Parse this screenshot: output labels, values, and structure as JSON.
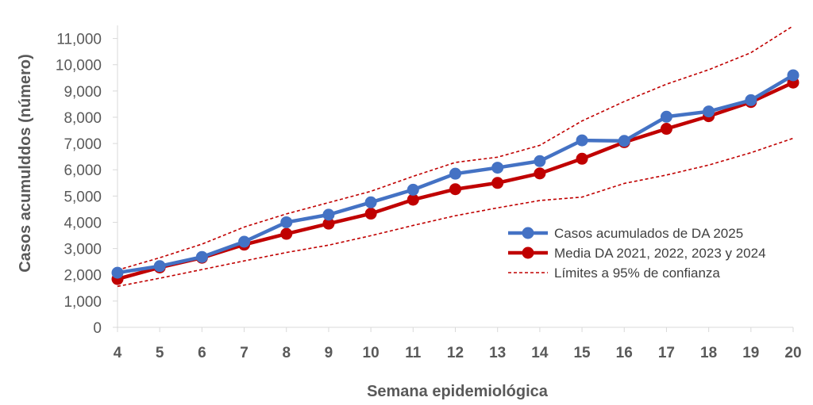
{
  "chart_data": {
    "type": "line",
    "title": "",
    "xlabel": "Semana epidemiológica",
    "ylabel": "Casos acumulddos (número)",
    "x": [
      4,
      5,
      6,
      7,
      8,
      9,
      10,
      11,
      12,
      13,
      14,
      15,
      16,
      17,
      18,
      19,
      20
    ],
    "x_tick_labels": [
      "4",
      "5",
      "6",
      "7",
      "8",
      "9",
      "10",
      "11",
      "12",
      "13",
      "14",
      "15",
      "16",
      "17",
      "18",
      "19",
      "20"
    ],
    "y_tick_labels": [
      "0",
      "1,000",
      "2,000",
      "3,000",
      "4,000",
      "5,000",
      "6,000",
      "7,000",
      "8,000",
      "9,000",
      "10,000",
      "11,000"
    ],
    "ylim": [
      0,
      11500
    ],
    "y_ticks": [
      0,
      1000,
      2000,
      3000,
      4000,
      5000,
      6000,
      7000,
      8000,
      9000,
      10000,
      11000
    ],
    "grid": false,
    "legend_position": "right",
    "series": [
      {
        "name": "Casos acumulados de DA 2025",
        "color": "#4472C4",
        "style": "line-markers",
        "values": [
          2080,
          2330,
          2680,
          3260,
          4000,
          4290,
          4760,
          5240,
          5850,
          6080,
          6330,
          7120,
          7100,
          8020,
          8220,
          8650,
          9600
        ]
      },
      {
        "name": "Media DA 2021, 2022, 2023 y 2024",
        "color": "#C00000",
        "style": "line-markers",
        "values": [
          1840,
          2280,
          2650,
          3150,
          3560,
          3950,
          4330,
          4860,
          5260,
          5500,
          5860,
          6420,
          7050,
          7560,
          8040,
          8580,
          9320
        ]
      },
      {
        "name": "Límites a 95% de confianza",
        "color": "#C00000",
        "style": "dashed",
        "values": [
          2180,
          2650,
          3170,
          3820,
          4320,
          4750,
          5180,
          5750,
          6280,
          6480,
          6930,
          7860,
          8600,
          9260,
          9810,
          10460,
          11480
        ]
      },
      {
        "name": "",
        "color": "#C00000",
        "style": "dashed",
        "values": [
          1560,
          1870,
          2200,
          2530,
          2850,
          3130,
          3490,
          3880,
          4250,
          4550,
          4830,
          4960,
          5480,
          5800,
          6180,
          6650,
          7200
        ]
      }
    ]
  }
}
